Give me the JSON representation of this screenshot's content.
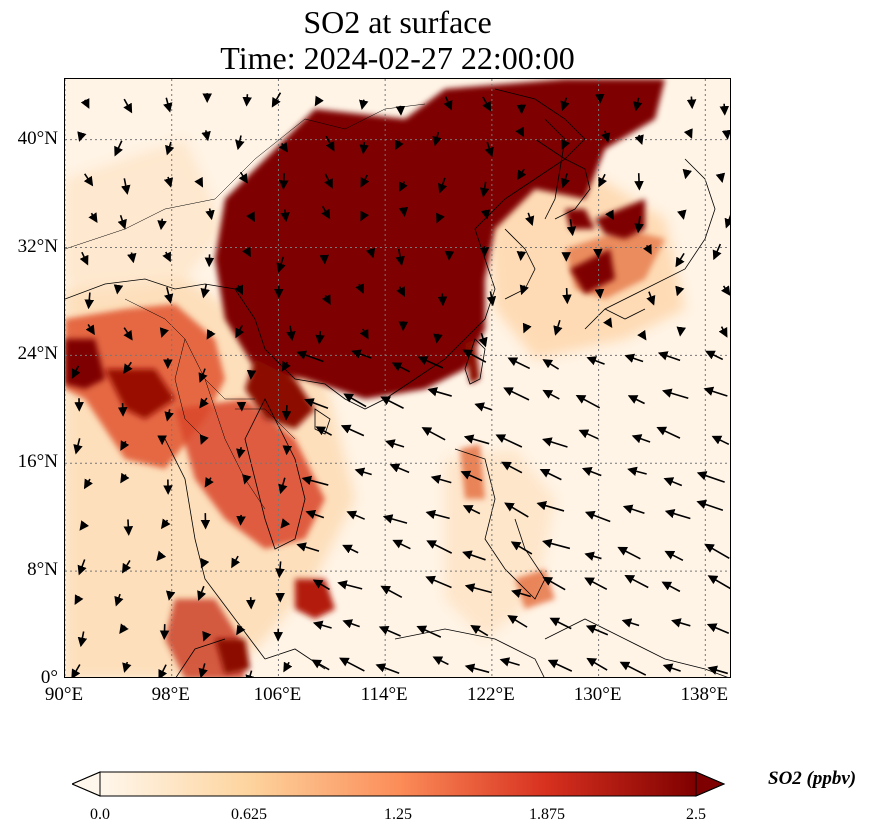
{
  "title": {
    "line1": "SO2 at surface",
    "line2": "Time: 2024-02-27 22:00:00"
  },
  "map": {
    "lon_range": [
      90,
      140
    ],
    "lat_range": [
      0,
      44.5
    ],
    "lat_ticks": [
      "0°",
      "8°N",
      "16°N",
      "24°N",
      "32°N",
      "40°N"
    ],
    "lon_ticks": [
      "90°E",
      "98°E",
      "106°E",
      "114°E",
      "122°E",
      "130°E",
      "138°E"
    ],
    "gridlines": "dotted",
    "vector_field": "wind arrows"
  },
  "colorbar": {
    "label": "SO2 (ppbv)",
    "ticks": [
      "0.0",
      "0.625",
      "1.25",
      "1.875",
      "2.5"
    ],
    "range": [
      0,
      2.5
    ],
    "colormap": "OrRd",
    "colors": [
      "#fff7ec",
      "#fdd49e",
      "#fc8d59",
      "#d7301f",
      "#7f0000"
    ],
    "extend": "both"
  }
}
